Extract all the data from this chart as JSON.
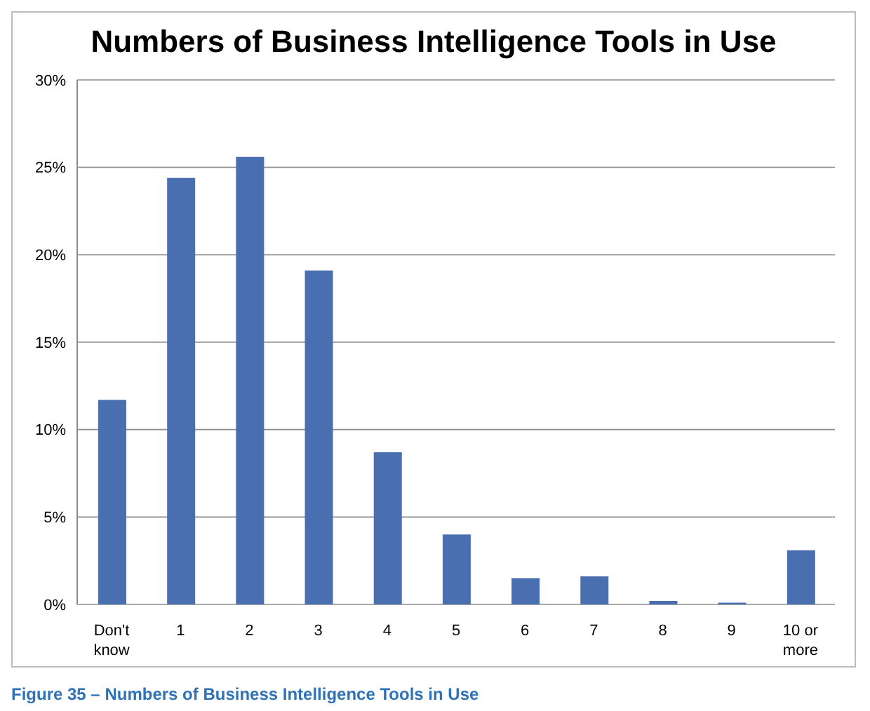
{
  "chart_data": {
    "type": "bar",
    "title": "Numbers of Business Intelligence Tools in Use",
    "categories": [
      "Don't know",
      "1",
      "2",
      "3",
      "4",
      "5",
      "6",
      "7",
      "8",
      "9",
      "10 or more"
    ],
    "values": [
      11.7,
      24.4,
      25.6,
      19.1,
      8.7,
      4.0,
      1.5,
      1.6,
      0.2,
      0.1,
      3.1
    ],
    "color": "#4a6fb0",
    "ylim": [
      0,
      30
    ],
    "yticks": [
      {
        "value": 0,
        "label": "0%"
      },
      {
        "value": 5,
        "label": "5%"
      },
      {
        "value": 10,
        "label": "10%"
      },
      {
        "value": 15,
        "label": "15%"
      },
      {
        "value": 20,
        "label": "20%"
      },
      {
        "value": 25,
        "label": "25%"
      },
      {
        "value": 30,
        "label": "30%"
      }
    ],
    "grid": "y",
    "annotations": [
      "Figure 35 – Numbers of Business Intelligence Tools in Use"
    ]
  }
}
